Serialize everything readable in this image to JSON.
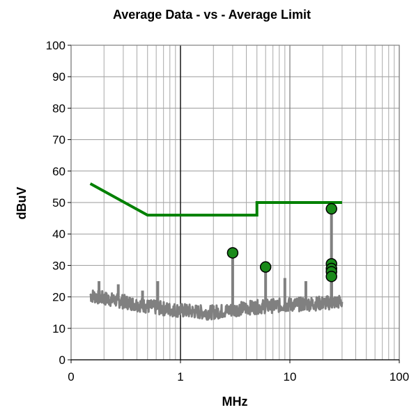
{
  "chart_data": {
    "type": "line",
    "title": "Average Data - vs - Average Limit",
    "xlabel": "MHz",
    "ylabel": "dBuV",
    "x_scale": "log",
    "xlim": [
      0.1,
      100
    ],
    "ylim": [
      0,
      100
    ],
    "x_ticks": [
      0.1,
      1,
      10,
      100
    ],
    "x_tick_labels": [
      "0",
      "1",
      "10",
      "100"
    ],
    "y_ticks": [
      0,
      10,
      20,
      30,
      40,
      50,
      60,
      70,
      80,
      90,
      100
    ],
    "y_tick_labels": [
      "0",
      "10",
      "20",
      "30",
      "40",
      "50",
      "60",
      "70",
      "80",
      "90",
      "100"
    ],
    "grid": true,
    "legend": "none",
    "colors": {
      "data": "#808080",
      "limit": "#008000",
      "marker_fill": "#1a8a1a",
      "marker_stroke": "#000000"
    },
    "series": [
      {
        "type": "line",
        "x": [
          0.15,
          0.5,
          0.5,
          5.0,
          5.0,
          30.0
        ],
        "y": [
          56,
          46,
          46,
          46,
          50,
          50
        ]
      },
      {
        "type": "noise",
        "baseline": [
          [
            0.15,
            20.5
          ],
          [
            0.2,
            19.5
          ],
          [
            0.3,
            18.5
          ],
          [
            0.5,
            17
          ],
          [
            0.8,
            16
          ],
          [
            1.2,
            15.5
          ],
          [
            1.8,
            15
          ],
          [
            2.5,
            15.5
          ],
          [
            4,
            16.5
          ],
          [
            6,
            17
          ],
          [
            10,
            17.5
          ],
          [
            20,
            18
          ],
          [
            30,
            18.5
          ]
        ],
        "spikes": [
          [
            0.18,
            25
          ],
          [
            0.27,
            24
          ],
          [
            0.45,
            22
          ],
          [
            0.62,
            25
          ],
          [
            3.0,
            34
          ],
          [
            6.0,
            29
          ],
          [
            9.0,
            26
          ],
          [
            14.0,
            25
          ],
          [
            24.0,
            48
          ],
          [
            24.0,
            30.5
          ],
          [
            24.0,
            29.5
          ],
          [
            24.0,
            28
          ],
          [
            24.0,
            26.5
          ]
        ]
      },
      {
        "type": "scatter",
        "x": [
          3.0,
          6.0,
          24.0,
          24.0,
          24.0,
          24.0,
          24.0
        ],
        "y": [
          34,
          29.5,
          48,
          30.5,
          29,
          28,
          26.5
        ]
      }
    ]
  }
}
